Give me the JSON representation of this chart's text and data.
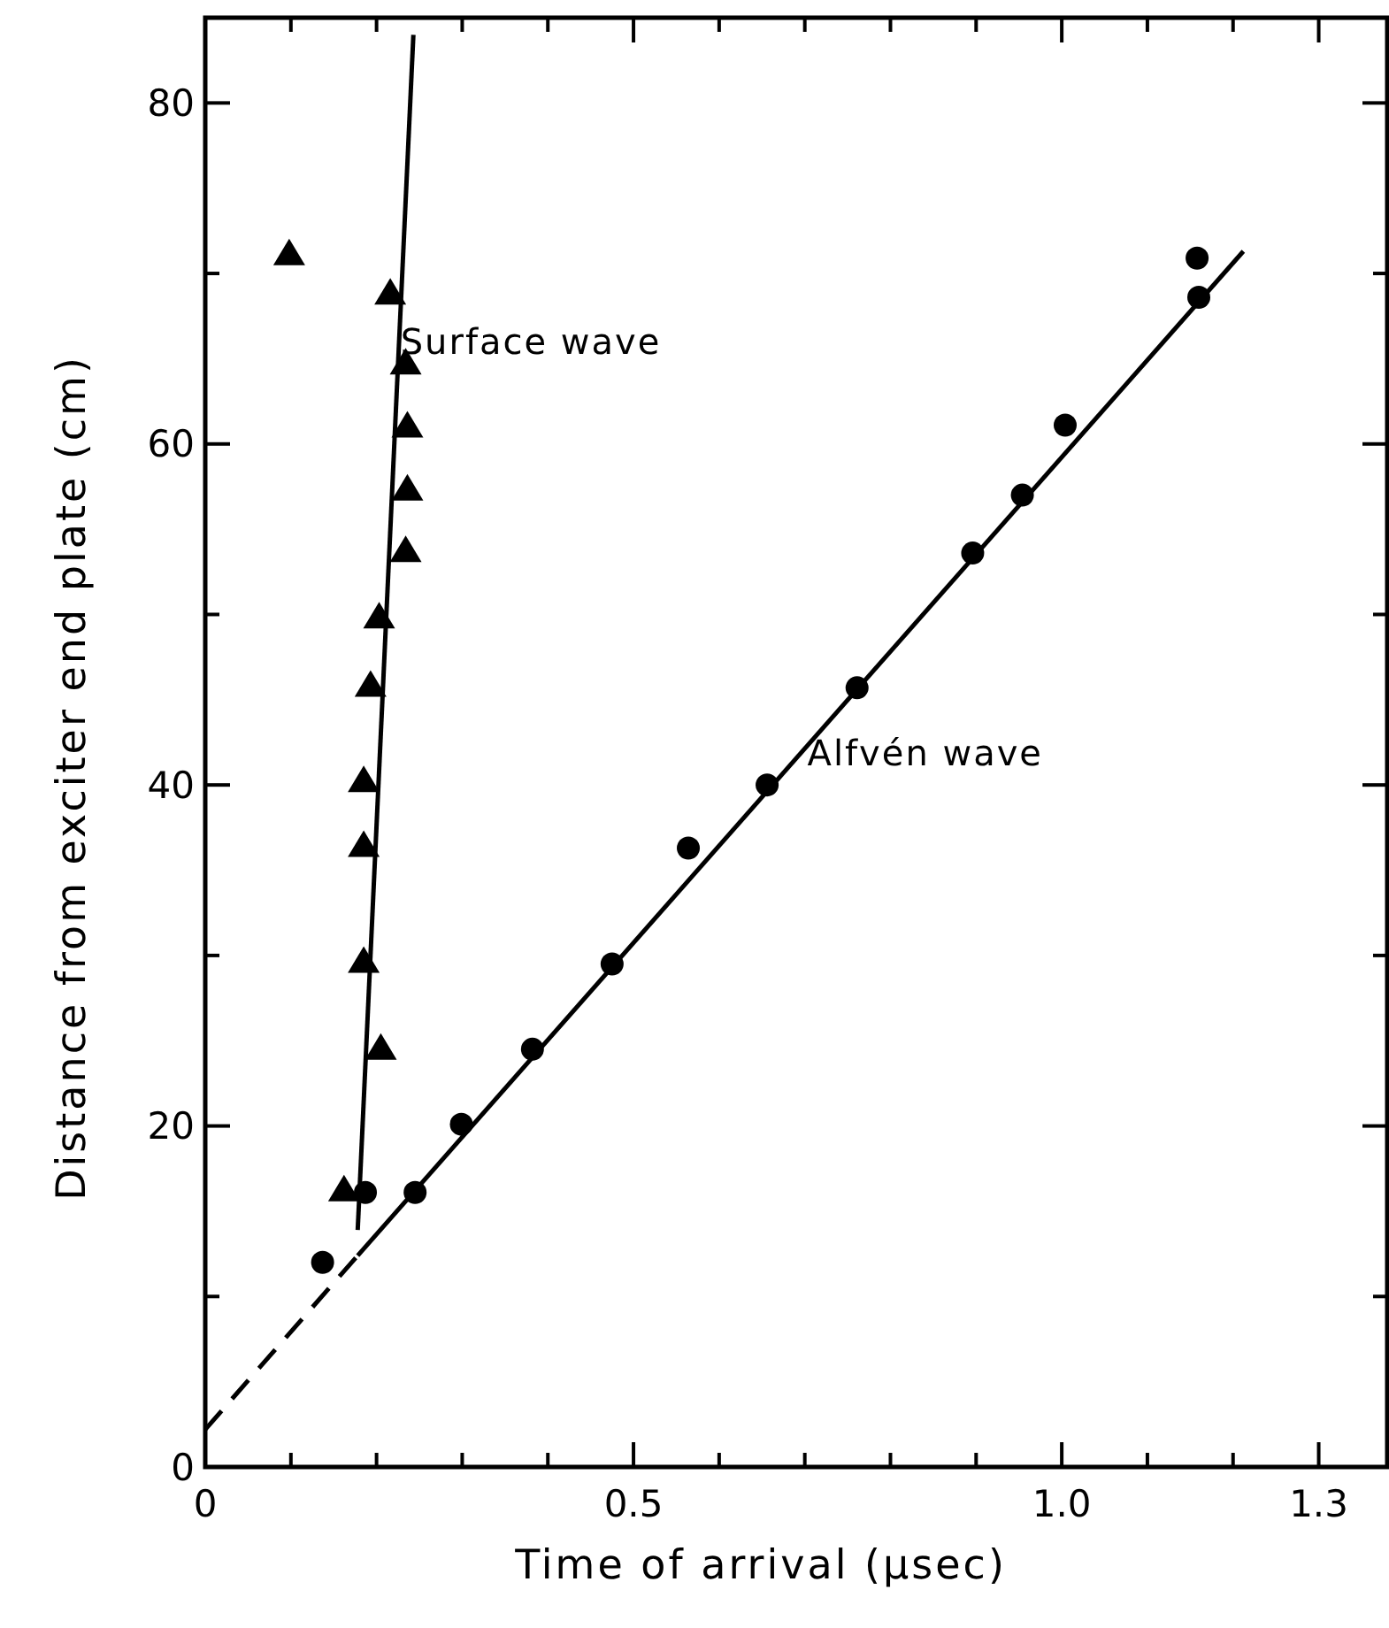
{
  "chart_data": {
    "type": "scatter",
    "xlabel": "Time of arrival (μsec)",
    "ylabel": "Distance from exciter end plate (cm)",
    "xlim": [
      0,
      1.38
    ],
    "ylim": [
      0,
      85
    ],
    "xticks": [
      0,
      {
        "value": 0.1,
        "label": null
      },
      {
        "value": 0.2,
        "label": null
      },
      {
        "value": 0.3,
        "label": null
      },
      {
        "value": 0.4,
        "label": null
      },
      {
        "value": 0.5,
        "label": "0.5"
      },
      {
        "value": 0.6,
        "label": null
      },
      {
        "value": 0.7,
        "label": null
      },
      {
        "value": 0.8,
        "label": null
      },
      {
        "value": 0.9,
        "label": null
      },
      {
        "value": 1.0,
        "label": "1.0"
      },
      {
        "value": 1.1,
        "label": null
      },
      {
        "value": 1.2,
        "label": null
      },
      {
        "value": 1.3,
        "label": "1.3"
      }
    ],
    "yticks": [
      0,
      {
        "value": 10,
        "label": null
      },
      20,
      {
        "value": 30,
        "label": null
      },
      40,
      {
        "value": 50,
        "label": null
      },
      60,
      {
        "value": 70,
        "label": null
      },
      80
    ],
    "grid": false,
    "series": [
      {
        "marker": "triangle",
        "color": "#000000",
        "x": [
          0.098,
          0.216,
          0.234,
          0.236,
          0.236,
          0.234,
          0.203,
          0.193,
          0.185,
          0.185,
          0.185,
          0.205,
          0.162
        ],
        "values": [
          71.1,
          68.8,
          64.7,
          61.0,
          57.3,
          53.7,
          49.8,
          45.8,
          40.2,
          36.4,
          29.6,
          24.5,
          16.2
        ]
      },
      {
        "type": "line",
        "line_style": "solid",
        "color": "#000000",
        "x": [
          0.178,
          0.243
        ],
        "values": [
          13.9,
          84
        ]
      },
      {
        "marker": "circle",
        "color": "#000000",
        "x": [
          0.137,
          0.187,
          0.245,
          0.299,
          0.382,
          0.475,
          0.564,
          0.656,
          0.761,
          0.896,
          0.954,
          1.004,
          1.16,
          1.158
        ],
        "values": [
          12.0,
          16.1,
          16.1,
          20.1,
          24.5,
          29.5,
          36.3,
          40.0,
          45.7,
          53.6,
          57.0,
          61.1,
          68.6,
          70.9
        ]
      },
      {
        "type": "line",
        "line_style": "solid",
        "color": "#000000",
        "x": [
          0.178,
          1.212
        ],
        "values": [
          12.4,
          71.3
        ]
      },
      {
        "type": "line",
        "line_style": "dashed",
        "color": "#000000",
        "x": [
          0,
          0.178
        ],
        "values": [
          2.2,
          12.4
        ]
      }
    ],
    "annotations": [
      {
        "text": "Surface wave",
        "x": 0.228,
        "y": 66.0
      },
      {
        "text": "Alfvén wave",
        "x": 0.703,
        "y": 41.9
      }
    ]
  }
}
